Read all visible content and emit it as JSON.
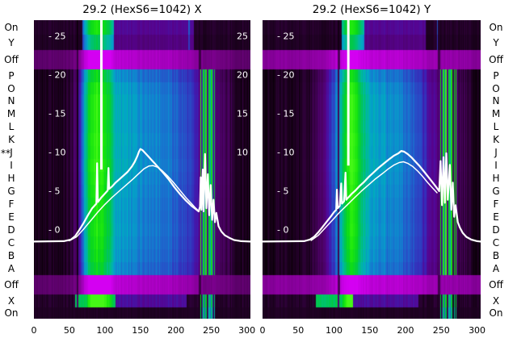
{
  "style": {
    "background": "#ffffff",
    "text_color": "#000000",
    "curve_color": "#ffffff",
    "scale_label_color": "#ffffff",
    "band_dark": "#200126",
    "band_bright": "#d400f2",
    "colormap": [
      [
        0.0,
        "#0b0009"
      ],
      [
        0.07,
        "#220127"
      ],
      [
        0.16,
        "#49015f"
      ],
      [
        0.25,
        "#57038f"
      ],
      [
        0.34,
        "#3c1fb4"
      ],
      [
        0.44,
        "#2750c8"
      ],
      [
        0.54,
        "#137fd0"
      ],
      [
        0.62,
        "#02a7c6"
      ],
      [
        0.7,
        "#00bb9b"
      ],
      [
        0.78,
        "#00c653"
      ],
      [
        0.86,
        "#09d71c"
      ],
      [
        0.94,
        "#22ec0c"
      ],
      [
        1.0,
        "#45f816"
      ]
    ]
  },
  "row_labels": [
    "On",
    "Y",
    "Off",
    "P",
    "O",
    "N",
    "M",
    "L",
    "K",
    "J",
    "I",
    "H",
    "G",
    "F",
    "E",
    "D",
    "C",
    "B",
    "A",
    "Off",
    "X",
    "On"
  ],
  "marker": {
    "text": "**",
    "row_index": 9
  },
  "chart_data": [
    {
      "type": "heatmap",
      "plane": "X",
      "title": "29.2 (HexS6=1042) X",
      "xlim": [
        0,
        305
      ],
      "x_ticks": [
        0,
        50,
        100,
        150,
        200,
        250,
        300
      ],
      "scale_ticks": [
        25,
        20,
        15,
        10,
        5,
        0
      ],
      "right_scale_ticks": [
        25,
        20,
        15,
        10
      ],
      "intensity_stops": [
        [
          0,
          0.04
        ],
        [
          40,
          0.05
        ],
        [
          50,
          0.08
        ],
        [
          56,
          0.14
        ],
        [
          60,
          0.2
        ],
        [
          64,
          0.32
        ],
        [
          68,
          0.5
        ],
        [
          72,
          0.68
        ],
        [
          76,
          0.82
        ],
        [
          80,
          0.92
        ],
        [
          86,
          0.97
        ],
        [
          92,
          0.96
        ],
        [
          98,
          0.92
        ],
        [
          103,
          0.86
        ],
        [
          108,
          0.78
        ],
        [
          112,
          0.7
        ],
        [
          116,
          0.65
        ],
        [
          122,
          0.62
        ],
        [
          132,
          0.6
        ],
        [
          145,
          0.59
        ],
        [
          160,
          0.57
        ],
        [
          175,
          0.55
        ],
        [
          188,
          0.52
        ],
        [
          200,
          0.48
        ],
        [
          210,
          0.44
        ],
        [
          218,
          0.4
        ],
        [
          226,
          0.34
        ],
        [
          232,
          0.28
        ],
        [
          238,
          0.22
        ],
        [
          244,
          0.2
        ],
        [
          258,
          0.19
        ],
        [
          266,
          0.16
        ],
        [
          274,
          0.12
        ],
        [
          284,
          0.08
        ],
        [
          295,
          0.05
        ],
        [
          305,
          0.04
        ]
      ],
      "stripes": [
        {
          "u": 234.5,
          "w": 1.6,
          "t": 0.95
        },
        {
          "u": 236.6,
          "w": 1.0,
          "t": 0.35
        },
        {
          "u": 238.2,
          "w": 2.0,
          "t": 0.92
        },
        {
          "u": 240.6,
          "w": 1.0,
          "t": 0.5
        },
        {
          "u": 242.2,
          "w": 2.0,
          "t": 0.97
        },
        {
          "u": 244.6,
          "w": 1.0,
          "t": 0.3
        },
        {
          "u": 246.2,
          "w": 1.6,
          "t": 0.85
        },
        {
          "u": 248.2,
          "w": 1.0,
          "t": 0.55
        },
        {
          "u": 249.8,
          "w": 1.6,
          "t": 0.9
        },
        {
          "u": 252.0,
          "w": 1.0,
          "t": 0.4
        },
        {
          "u": 253.6,
          "w": 1.6,
          "t": 0.8
        }
      ],
      "dark_lines": [
        61
      ],
      "band_gaps": [
        61,
        233
      ],
      "band_ci_weight": 0.85,
      "band_boost": 0.3,
      "top_green_span": [
        68,
        112
      ],
      "top_dim_span": [
        112,
        225
      ],
      "top_blue_line": 218,
      "x_row_green_span": [
        58,
        114
      ],
      "x_row_dim_span": [
        114,
        215
      ],
      "spike_line": {
        "x": 95,
        "top": 27.1,
        "bottom": 7.8
      },
      "profile_main": [
        [
          0,
          -1.5
        ],
        [
          42,
          -1.45
        ],
        [
          52,
          -1.25
        ],
        [
          58,
          -0.8
        ],
        [
          64,
          0.0
        ],
        [
          70,
          0.9
        ],
        [
          76,
          1.9
        ],
        [
          82,
          2.8
        ],
        [
          86,
          3.2
        ],
        [
          88,
          3.4
        ],
        [
          89,
          8.6
        ],
        [
          90,
          3.6
        ],
        [
          95,
          4.2
        ],
        [
          100,
          4.7
        ],
        [
          104,
          5.1
        ],
        [
          105,
          8.0
        ],
        [
          106,
          5.3
        ],
        [
          110,
          5.6
        ],
        [
          115,
          6.1
        ],
        [
          120,
          6.5
        ],
        [
          126,
          7.0
        ],
        [
          132,
          7.5
        ],
        [
          138,
          8.2
        ],
        [
          142,
          8.8
        ],
        [
          146,
          9.6
        ],
        [
          148,
          10.1
        ],
        [
          150,
          10.45
        ],
        [
          153,
          10.3
        ],
        [
          156,
          10.0
        ],
        [
          160,
          9.6
        ],
        [
          165,
          9.1
        ],
        [
          170,
          8.6
        ],
        [
          176,
          8.0
        ],
        [
          182,
          7.4
        ],
        [
          190,
          6.5
        ],
        [
          198,
          5.5
        ],
        [
          206,
          4.6
        ],
        [
          214,
          3.8
        ],
        [
          222,
          3.1
        ],
        [
          228,
          2.7
        ],
        [
          232,
          2.4
        ],
        [
          234,
          3.0
        ],
        [
          235,
          6.8
        ],
        [
          236,
          2.6
        ],
        [
          238,
          7.8
        ],
        [
          239,
          2.4
        ],
        [
          241,
          9.8
        ],
        [
          243,
          2.8
        ],
        [
          245,
          7.2
        ],
        [
          247,
          1.9
        ],
        [
          249,
          5.8
        ],
        [
          251,
          1.3
        ],
        [
          253,
          3.9
        ],
        [
          255,
          1.0
        ],
        [
          257,
          2.2
        ],
        [
          260,
          0.5
        ],
        [
          264,
          -0.2
        ],
        [
          269,
          -0.7
        ],
        [
          275,
          -1.0
        ],
        [
          282,
          -1.3
        ],
        [
          292,
          -1.45
        ],
        [
          305,
          -1.5
        ]
      ],
      "profile_secondary": [
        [
          50,
          -1.4
        ],
        [
          60,
          -0.9
        ],
        [
          70,
          0.1
        ],
        [
          80,
          1.2
        ],
        [
          90,
          2.3
        ],
        [
          100,
          3.3
        ],
        [
          110,
          4.2
        ],
        [
          120,
          5.0
        ],
        [
          130,
          5.8
        ],
        [
          140,
          6.6
        ],
        [
          148,
          7.3
        ],
        [
          155,
          7.9
        ],
        [
          162,
          8.25
        ],
        [
          168,
          8.3
        ],
        [
          174,
          8.1
        ],
        [
          180,
          7.7
        ],
        [
          188,
          7.0
        ],
        [
          196,
          6.2
        ],
        [
          205,
          5.2
        ],
        [
          214,
          4.2
        ],
        [
          222,
          3.4
        ],
        [
          228,
          2.8
        ],
        [
          232,
          2.45
        ]
      ]
    },
    {
      "type": "heatmap",
      "plane": "Y",
      "title": "29.2 (HexS6=1042) Y",
      "xlim": [
        0,
        305
      ],
      "x_ticks": [
        0,
        50,
        100,
        150,
        200,
        250,
        300
      ],
      "scale_ticks": [
        25,
        20,
        15,
        10,
        5,
        0
      ],
      "right_scale_ticks": [],
      "intensity_stops": [
        [
          0,
          0.04
        ],
        [
          50,
          0.05
        ],
        [
          62,
          0.07
        ],
        [
          72,
          0.11
        ],
        [
          82,
          0.2
        ],
        [
          90,
          0.3
        ],
        [
          98,
          0.42
        ],
        [
          104,
          0.55
        ],
        [
          109,
          0.68
        ],
        [
          113,
          0.8
        ],
        [
          117,
          0.9
        ],
        [
          122,
          0.97
        ],
        [
          128,
          0.95
        ],
        [
          133,
          0.88
        ],
        [
          138,
          0.78
        ],
        [
          143,
          0.7
        ],
        [
          148,
          0.65
        ],
        [
          155,
          0.62
        ],
        [
          168,
          0.6
        ],
        [
          182,
          0.57
        ],
        [
          195,
          0.53
        ],
        [
          205,
          0.49
        ],
        [
          213,
          0.45
        ],
        [
          221,
          0.4
        ],
        [
          229,
          0.33
        ],
        [
          236,
          0.27
        ],
        [
          242,
          0.22
        ],
        [
          247,
          0.2
        ],
        [
          262,
          0.19
        ],
        [
          272,
          0.16
        ],
        [
          280,
          0.12
        ],
        [
          290,
          0.08
        ],
        [
          300,
          0.05
        ],
        [
          305,
          0.04
        ]
      ],
      "stripes": [
        {
          "u": 248.5,
          "w": 1.6,
          "t": 0.95
        },
        {
          "u": 250.6,
          "w": 1.0,
          "t": 0.35
        },
        {
          "u": 252.2,
          "w": 2.0,
          "t": 0.92
        },
        {
          "u": 254.6,
          "w": 1.0,
          "t": 0.5
        },
        {
          "u": 256.2,
          "w": 2.0,
          "t": 0.97
        },
        {
          "u": 258.6,
          "w": 1.0,
          "t": 0.3
        },
        {
          "u": 260.2,
          "w": 1.6,
          "t": 0.85
        },
        {
          "u": 262.2,
          "w": 1.0,
          "t": 0.55
        },
        {
          "u": 263.8,
          "w": 1.6,
          "t": 0.9
        },
        {
          "u": 266.0,
          "w": 1.0,
          "t": 0.4
        },
        {
          "u": 267.6,
          "w": 2.0,
          "t": 0.85
        },
        {
          "u": 270.2,
          "w": 1.6,
          "t": 0.9
        }
      ],
      "dark_lines": [
        106
      ],
      "band_gaps": [
        106,
        246
      ],
      "band_ci_weight": 0.5,
      "band_boost": 0.55,
      "top_green_span": [
        110,
        142
      ],
      "top_dim_span": [
        142,
        228
      ],
      "top_blue_line": 244,
      "x_row_green_span": [
        74,
        126
      ],
      "x_row_dim_span": [
        126,
        218
      ],
      "spike_line": {
        "x": 120,
        "top": 27.1,
        "bottom": 8.3
      },
      "profile_main": [
        [
          0,
          -1.5
        ],
        [
          58,
          -1.45
        ],
        [
          66,
          -1.25
        ],
        [
          72,
          -0.9
        ],
        [
          78,
          -0.3
        ],
        [
          84,
          0.4
        ],
        [
          90,
          1.1
        ],
        [
          96,
          1.8
        ],
        [
          100,
          2.3
        ],
        [
          103,
          2.6
        ],
        [
          104,
          5.2
        ],
        [
          105,
          2.8
        ],
        [
          108,
          3.1
        ],
        [
          110,
          6.0
        ],
        [
          111,
          3.4
        ],
        [
          114,
          3.7
        ],
        [
          116,
          7.4
        ],
        [
          117,
          3.9
        ],
        [
          120,
          4.2
        ],
        [
          125,
          4.7
        ],
        [
          130,
          5.1
        ],
        [
          136,
          5.7
        ],
        [
          142,
          6.2
        ],
        [
          148,
          6.8
        ],
        [
          155,
          7.4
        ],
        [
          162,
          8.0
        ],
        [
          170,
          8.6
        ],
        [
          178,
          9.2
        ],
        [
          184,
          9.6
        ],
        [
          190,
          9.9
        ],
        [
          194,
          10.2
        ],
        [
          198,
          10.1
        ],
        [
          203,
          9.8
        ],
        [
          208,
          9.4
        ],
        [
          214,
          8.8
        ],
        [
          220,
          8.2
        ],
        [
          227,
          7.4
        ],
        [
          233,
          6.7
        ],
        [
          239,
          6.0
        ],
        [
          244,
          5.4
        ],
        [
          247,
          5.0
        ],
        [
          249,
          8.9
        ],
        [
          251,
          3.2
        ],
        [
          253,
          9.4
        ],
        [
          255,
          3.5
        ],
        [
          257,
          9.9
        ],
        [
          259,
          3.9
        ],
        [
          262,
          8.4
        ],
        [
          264,
          2.6
        ],
        [
          266,
          6.1
        ],
        [
          268,
          1.7
        ],
        [
          270,
          3.2
        ],
        [
          273,
          1.0
        ],
        [
          276,
          0.3
        ],
        [
          280,
          -0.4
        ],
        [
          285,
          -0.9
        ],
        [
          292,
          -1.25
        ],
        [
          300,
          -1.45
        ],
        [
          305,
          -1.5
        ]
      ],
      "profile_secondary": [
        [
          68,
          -1.35
        ],
        [
          78,
          -0.7
        ],
        [
          88,
          0.3
        ],
        [
          98,
          1.3
        ],
        [
          108,
          2.3
        ],
        [
          118,
          3.2
        ],
        [
          128,
          4.1
        ],
        [
          138,
          5.0
        ],
        [
          148,
          5.8
        ],
        [
          158,
          6.6
        ],
        [
          168,
          7.3
        ],
        [
          176,
          7.9
        ],
        [
          184,
          8.4
        ],
        [
          191,
          8.7
        ],
        [
          197,
          8.8
        ],
        [
          203,
          8.6
        ],
        [
          210,
          8.2
        ],
        [
          217,
          7.6
        ],
        [
          224,
          6.9
        ],
        [
          231,
          6.1
        ],
        [
          238,
          5.4
        ],
        [
          244,
          4.8
        ]
      ]
    }
  ]
}
